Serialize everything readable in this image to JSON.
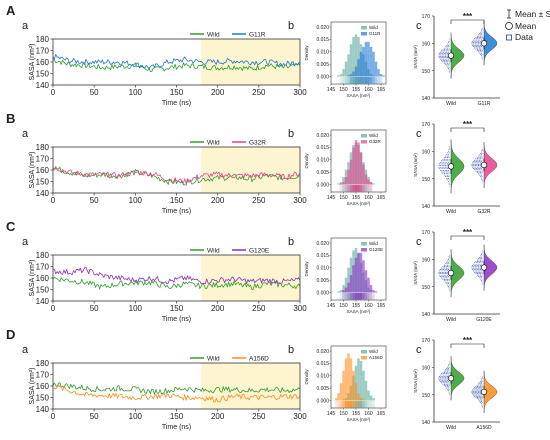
{
  "figure": {
    "colors": {
      "wild": "#2ca02c",
      "highlight": "#fdf5cf",
      "data_marker": "#1f3aa8"
    },
    "key": {
      "items": [
        {
          "symbol": "errorbar-icon",
          "label": "Mean ± SD"
        },
        {
          "symbol": "circle-icon",
          "label": "Mean"
        },
        {
          "symbol": "square-icon",
          "label": "Data"
        }
      ]
    }
  },
  "rows": [
    {
      "letter": "A",
      "sub_a": "a",
      "sub_b": "b",
      "sub_c": "c",
      "mutant": "G11R",
      "color": "#1f77d4"
    },
    {
      "letter": "B",
      "sub_a": "a",
      "sub_b": "b",
      "sub_c": "c",
      "mutant": "G32R",
      "color": "#ea3f8a"
    },
    {
      "letter": "C",
      "sub_a": "a",
      "sub_b": "b",
      "sub_c": "c",
      "mutant": "G120E",
      "color": "#8b2fc4"
    },
    {
      "letter": "D",
      "sub_a": "a",
      "sub_b": "b",
      "sub_c": "c",
      "mutant": "A156D",
      "color": "#ff8c1a"
    }
  ],
  "chart_data": [
    {
      "type": "line",
      "panel": "A-a",
      "xlabel": "Time (ns)",
      "ylabel": "SASA (nm²)",
      "xlim": [
        0,
        300
      ],
      "ylim": [
        140,
        180
      ],
      "xticks": [
        0,
        50,
        100,
        150,
        200,
        250,
        300
      ],
      "yticks": [
        140,
        150,
        160,
        170,
        180
      ],
      "highlight_x": [
        180,
        300
      ],
      "series": [
        {
          "name": "Wild",
          "x": [
            0,
            20,
            40,
            60,
            80,
            100,
            120,
            140,
            160,
            180,
            200,
            220,
            240,
            260,
            280,
            300
          ],
          "y": [
            162,
            158,
            157,
            155,
            156,
            157,
            153,
            155,
            157,
            156,
            155,
            156,
            154,
            157,
            155,
            157
          ]
        },
        {
          "name": "G11R",
          "x": [
            0,
            20,
            40,
            60,
            80,
            100,
            120,
            140,
            160,
            180,
            200,
            220,
            240,
            260,
            280,
            300
          ],
          "y": [
            165,
            161,
            160,
            160,
            160,
            158,
            155,
            160,
            162,
            160,
            160,
            161,
            160,
            160,
            158,
            160
          ]
        }
      ]
    },
    {
      "type": "bar",
      "panel": "A-b",
      "xlabel": "SASA (nm²)",
      "ylabel": "Density",
      "xlim": [
        145,
        167
      ],
      "ylim": [
        -0.003,
        0.022
      ],
      "xticks": [
        145,
        150,
        155,
        160,
        165
      ],
      "yticks": [
        0.0,
        0.005,
        0.01,
        0.015,
        0.02
      ],
      "categories": [
        146,
        147,
        148,
        149,
        150,
        151,
        152,
        153,
        154,
        155,
        156,
        157,
        158,
        159,
        160,
        161,
        162,
        163,
        164,
        165,
        166
      ],
      "series": [
        {
          "name": "Wild",
          "values": [
            0,
            0,
            0.0005,
            0.001,
            0.003,
            0.006,
            0.009,
            0.013,
            0.016,
            0.017,
            0.016,
            0.013,
            0.009,
            0.006,
            0.003,
            0.001,
            0.0005,
            0,
            0,
            0,
            0
          ]
        },
        {
          "name": "G11R",
          "values": [
            0,
            0,
            0,
            0,
            0,
            0,
            0.0005,
            0.001,
            0.002,
            0.004,
            0.007,
            0.01,
            0.012,
            0.014,
            0.014,
            0.012,
            0.01,
            0.006,
            0.003,
            0.001,
            0.0005
          ]
        }
      ]
    },
    {
      "type": "scatter",
      "panel": "A-c",
      "ylabel": "SASA (nm²)",
      "ylim": [
        140,
        170
      ],
      "yticks": [
        140,
        150,
        160,
        170
      ],
      "categories": [
        "Wild",
        "G11R"
      ],
      "significance": "***",
      "series": [
        {
          "name": "Wild",
          "mean": 155.5,
          "sd": 2.4
        },
        {
          "name": "G11R",
          "mean": 160.0,
          "sd": 2.3
        }
      ]
    },
    {
      "type": "line",
      "panel": "B-a",
      "xlabel": "Time (ns)",
      "ylabel": "SASA (nm²)",
      "xlim": [
        0,
        300
      ],
      "ylim": [
        140,
        180
      ],
      "xticks": [
        0,
        50,
        100,
        150,
        200,
        250,
        300
      ],
      "yticks": [
        140,
        150,
        160,
        170,
        180
      ],
      "highlight_x": [
        180,
        300
      ],
      "series": [
        {
          "name": "Wild",
          "x": [
            0,
            20,
            40,
            60,
            80,
            100,
            120,
            140,
            160,
            180,
            200,
            220,
            240,
            260,
            280,
            300
          ],
          "y": [
            162,
            158,
            155,
            156,
            155,
            158,
            155,
            150,
            149,
            152,
            153,
            154,
            152,
            155,
            153,
            155
          ]
        },
        {
          "name": "G32R",
          "x": [
            0,
            20,
            40,
            60,
            80,
            100,
            120,
            140,
            160,
            180,
            200,
            220,
            240,
            260,
            280,
            300
          ],
          "y": [
            163,
            158,
            156,
            156,
            155,
            158,
            157,
            152,
            150,
            155,
            156,
            155,
            155,
            156,
            154,
            157
          ]
        }
      ]
    },
    {
      "type": "bar",
      "panel": "B-b",
      "xlabel": "SASA (nm²)",
      "ylabel": "Density",
      "xlim": [
        145,
        167
      ],
      "ylim": [
        -0.003,
        0.022
      ],
      "xticks": [
        145,
        150,
        155,
        160,
        165
      ],
      "yticks": [
        0.0,
        0.005,
        0.01,
        0.015,
        0.02
      ],
      "categories": [
        146,
        147,
        148,
        149,
        150,
        151,
        152,
        153,
        154,
        155,
        156,
        157,
        158,
        159,
        160,
        161,
        162,
        163,
        164,
        165,
        166
      ],
      "series": [
        {
          "name": "Wild",
          "values": [
            0,
            0,
            0.0005,
            0.001,
            0.003,
            0.006,
            0.009,
            0.013,
            0.016,
            0.017,
            0.016,
            0.013,
            0.009,
            0.006,
            0.003,
            0.001,
            0.0005,
            0,
            0,
            0,
            0
          ]
        },
        {
          "name": "G32R",
          "values": [
            0,
            0,
            0,
            0.0005,
            0.001,
            0.003,
            0.006,
            0.01,
            0.015,
            0.018,
            0.017,
            0.013,
            0.008,
            0.004,
            0.002,
            0.001,
            0,
            0,
            0,
            0,
            0
          ]
        }
      ]
    },
    {
      "type": "scatter",
      "panel": "B-c",
      "ylabel": "SASA (nm²)",
      "ylim": [
        140,
        170
      ],
      "yticks": [
        140,
        150,
        160,
        170
      ],
      "categories": [
        "Wild",
        "G32R"
      ],
      "significance": "***",
      "series": [
        {
          "name": "Wild",
          "mean": 154.5,
          "sd": 2.8
        },
        {
          "name": "G32R",
          "mean": 155.0,
          "sd": 2.4
        }
      ]
    },
    {
      "type": "line",
      "panel": "C-a",
      "xlabel": "Time (ns)",
      "ylabel": "SASA (nm²)",
      "xlim": [
        0,
        300
      ],
      "ylim": [
        140,
        180
      ],
      "xticks": [
        0,
        50,
        100,
        150,
        200,
        250,
        300
      ],
      "yticks": [
        140,
        150,
        160,
        170,
        180
      ],
      "highlight_x": [
        180,
        300
      ],
      "series": [
        {
          "name": "Wild",
          "x": [
            0,
            20,
            40,
            60,
            80,
            100,
            120,
            140,
            160,
            180,
            200,
            220,
            240,
            260,
            280,
            300
          ],
          "y": [
            160,
            158,
            156,
            152,
            155,
            156,
            156,
            152,
            155,
            153,
            154,
            155,
            152,
            155,
            154,
            153
          ]
        },
        {
          "name": "G120E",
          "x": [
            0,
            20,
            40,
            60,
            80,
            100,
            120,
            140,
            160,
            180,
            200,
            220,
            240,
            260,
            280,
            300
          ],
          "y": [
            166,
            165,
            167,
            162,
            160,
            158,
            160,
            157,
            160,
            157,
            158,
            159,
            157,
            158,
            157,
            158
          ]
        }
      ]
    },
    {
      "type": "bar",
      "panel": "C-b",
      "xlabel": "SASA (nm²)",
      "ylabel": "Density",
      "xlim": [
        145,
        167
      ],
      "ylim": [
        -0.003,
        0.022
      ],
      "xticks": [
        145,
        150,
        155,
        160,
        165
      ],
      "yticks": [
        0.0,
        0.005,
        0.01,
        0.015,
        0.02
      ],
      "categories": [
        146,
        147,
        148,
        149,
        150,
        151,
        152,
        153,
        154,
        155,
        156,
        157,
        158,
        159,
        160,
        161,
        162,
        163,
        164,
        165,
        166
      ],
      "series": [
        {
          "name": "Wild",
          "values": [
            0,
            0,
            0.0005,
            0.001,
            0.003,
            0.006,
            0.01,
            0.014,
            0.017,
            0.018,
            0.016,
            0.012,
            0.008,
            0.005,
            0.002,
            0.001,
            0,
            0,
            0,
            0,
            0
          ]
        },
        {
          "name": "G120E",
          "values": [
            0,
            0,
            0,
            0,
            0.001,
            0.002,
            0.004,
            0.007,
            0.011,
            0.014,
            0.016,
            0.016,
            0.013,
            0.009,
            0.006,
            0.003,
            0.001,
            0.0005,
            0,
            0,
            0
          ]
        }
      ]
    },
    {
      "type": "scatter",
      "panel": "C-c",
      "ylabel": "SASA (nm²)",
      "ylim": [
        140,
        170
      ],
      "yticks": [
        140,
        150,
        160,
        170
      ],
      "categories": [
        "Wild",
        "G120E"
      ],
      "significance": "***",
      "series": [
        {
          "name": "Wild",
          "mean": 155.0,
          "sd": 2.5
        },
        {
          "name": "G120E",
          "mean": 157.0,
          "sd": 2.4
        }
      ]
    },
    {
      "type": "line",
      "panel": "D-a",
      "xlabel": "Time (ns)",
      "ylabel": "SASA (nm²)",
      "xlim": [
        0,
        300
      ],
      "ylim": [
        140,
        180
      ],
      "xticks": [
        0,
        50,
        100,
        150,
        200,
        250,
        300
      ],
      "yticks": [
        140,
        150,
        160,
        170,
        180
      ],
      "highlight_x": [
        180,
        300
      ],
      "series": [
        {
          "name": "Wild",
          "x": [
            0,
            20,
            40,
            60,
            80,
            100,
            120,
            140,
            160,
            180,
            200,
            220,
            240,
            260,
            280,
            300
          ],
          "y": [
            162,
            160,
            158,
            157,
            158,
            157,
            155,
            156,
            158,
            156,
            157,
            157,
            156,
            157,
            156,
            157
          ]
        },
        {
          "name": "A156D",
          "x": [
            0,
            20,
            40,
            60,
            80,
            100,
            120,
            140,
            160,
            180,
            200,
            220,
            240,
            260,
            280,
            300
          ],
          "y": [
            160,
            156,
            152,
            152,
            151,
            150,
            151,
            152,
            150,
            150,
            148,
            151,
            150,
            150,
            151,
            151
          ]
        }
      ]
    },
    {
      "type": "bar",
      "panel": "D-b",
      "xlabel": "SASA (nm²)",
      "ylabel": "Density",
      "xlim": [
        145,
        167
      ],
      "ylim": [
        -0.003,
        0.022
      ],
      "xticks": [
        145,
        150,
        155,
        160,
        165
      ],
      "yticks": [
        0.0,
        0.005,
        0.01,
        0.015,
        0.02
      ],
      "categories": [
        146,
        147,
        148,
        149,
        150,
        151,
        152,
        153,
        154,
        155,
        156,
        157,
        158,
        159,
        160,
        161,
        162,
        163,
        164,
        165,
        166
      ],
      "series": [
        {
          "name": "Wild",
          "values": [
            0,
            0,
            0,
            0,
            0.0005,
            0.001,
            0.003,
            0.006,
            0.01,
            0.014,
            0.017,
            0.016,
            0.012,
            0.008,
            0.004,
            0.002,
            0.001,
            0,
            0,
            0,
            0
          ]
        },
        {
          "name": "A156D",
          "values": [
            0,
            0.001,
            0.003,
            0.007,
            0.012,
            0.017,
            0.019,
            0.017,
            0.012,
            0.007,
            0.003,
            0.001,
            0.0005,
            0,
            0,
            0,
            0,
            0,
            0,
            0,
            0
          ]
        }
      ]
    },
    {
      "type": "scatter",
      "panel": "D-c",
      "ylabel": "SASA (nm²)",
      "ylim": [
        140,
        170
      ],
      "yticks": [
        140,
        150,
        160,
        170
      ],
      "categories": [
        "Wild",
        "A156D"
      ],
      "significance": "***",
      "series": [
        {
          "name": "Wild",
          "mean": 156.0,
          "sd": 2.3
        },
        {
          "name": "A156D",
          "mean": 151.0,
          "sd": 2.2
        }
      ]
    }
  ]
}
